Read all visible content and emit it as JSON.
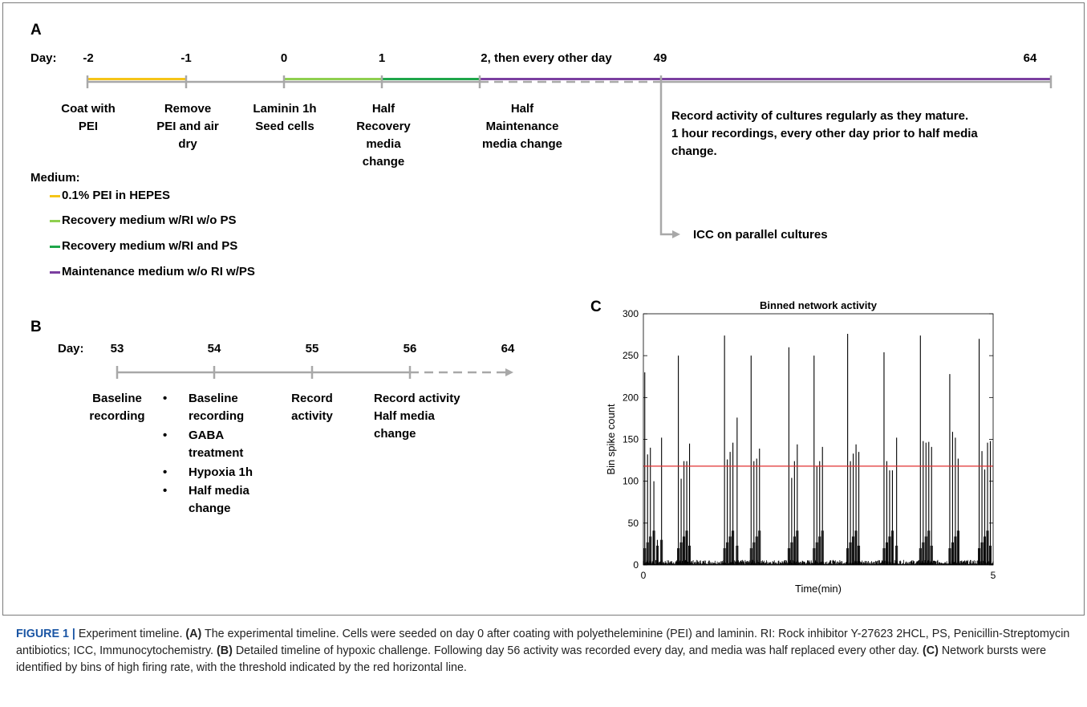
{
  "panel_a": {
    "letter": "A",
    "day_label": "Day:",
    "days": [
      "-2",
      "-1",
      "0",
      "1",
      "2, then every other day",
      "49",
      "64"
    ],
    "steps": [
      "Coat with\nPEI",
      "Remove\nPEI and air\ndry",
      "Laminin 1h\nSeed cells",
      "Half\nRecovery\nmedia\nchange",
      "Half\nMaintenance\nmedia change"
    ],
    "record_note": "Record activity of cultures regularly as they mature.\n1 hour recordings, every other day prior to half media\nchange.",
    "icc_note": "ICC on parallel cultures",
    "medium_title": "Medium:",
    "media": [
      {
        "label": "0.1% PEI in HEPES",
        "color": "#f5c518"
      },
      {
        "label": "Recovery medium w/RI w/o PS",
        "color": "#8fcf4f"
      },
      {
        "label": "Recovery medium w/RI and PS",
        "color": "#1fa64a"
      },
      {
        "label": "Maintenance medium w/o RI w/PS",
        "color": "#7b3fa0"
      }
    ]
  },
  "panel_b": {
    "letter": "B",
    "day_label": "Day:",
    "days": [
      "53",
      "54",
      "55",
      "56",
      "64"
    ],
    "baseline": "Baseline\nrecording",
    "bullets": [
      "Baseline\nrecording",
      "GABA\ntreatment",
      "Hypoxia 1h",
      "Half media\nchange"
    ],
    "record": "Record\nactivity",
    "record_half": "Record activity\nHalf media\nchange"
  },
  "panel_c": {
    "letter": "C"
  },
  "chart_data": {
    "type": "bar",
    "title": "Binned network activity",
    "xlabel": "Time(min)",
    "ylabel": "Bin spike count",
    "xlim": [
      0,
      5
    ],
    "ylim": [
      0,
      300
    ],
    "xticks": [
      0,
      5
    ],
    "yticks": [
      0,
      50,
      100,
      150,
      200,
      250,
      300
    ],
    "threshold": 118,
    "threshold_color": "#e03030",
    "bar_color": "#000000",
    "bursts": [
      {
        "x": [
          0.02,
          0.06,
          0.1,
          0.15,
          0.2,
          0.26
        ],
        "y": [
          230,
          132,
          140,
          100,
          30,
          152
        ]
      },
      {
        "x": [
          0.5,
          0.54,
          0.58,
          0.62,
          0.66
        ],
        "y": [
          250,
          103,
          124,
          124,
          145
        ]
      },
      {
        "x": [
          1.16,
          1.2,
          1.24,
          1.28,
          1.34
        ],
        "y": [
          274,
          126,
          135,
          146,
          176
        ]
      },
      {
        "x": [
          1.54,
          1.58,
          1.62,
          1.66
        ],
        "y": [
          250,
          124,
          127,
          139
        ]
      },
      {
        "x": [
          2.08,
          2.12,
          2.16,
          2.2
        ],
        "y": [
          260,
          104,
          124,
          144
        ]
      },
      {
        "x": [
          2.44,
          2.48,
          2.52,
          2.56
        ],
        "y": [
          250,
          118,
          124,
          141
        ]
      },
      {
        "x": [
          2.92,
          2.96,
          3.0,
          3.04,
          3.08
        ],
        "y": [
          276,
          124,
          133,
          144,
          135
        ]
      },
      {
        "x": [
          3.44,
          3.48,
          3.52,
          3.56,
          3.62
        ],
        "y": [
          254,
          124,
          113,
          113,
          152
        ]
      },
      {
        "x": [
          3.96,
          4.0,
          4.04,
          4.08,
          4.12
        ],
        "y": [
          274,
          148,
          146,
          147,
          141
        ]
      },
      {
        "x": [
          4.38,
          4.42,
          4.46,
          4.5
        ],
        "y": [
          228,
          159,
          152,
          127
        ]
      },
      {
        "x": [
          4.8,
          4.84,
          4.88,
          4.92,
          4.96
        ],
        "y": [
          270,
          136,
          114,
          146,
          148
        ]
      }
    ]
  },
  "caption": {
    "lead": "FIGURE 1 |",
    "intro": " Experiment timeline. ",
    "a_tag": "(A)",
    "a_text": " The experimental timeline. Cells were seeded on day 0 after coating with polyetheleminine (PEI) and laminin. RI: Rock inhibitor Y-27623 2HCL, PS, Penicillin-Streptomycin antibiotics; ICC, Immunocytochemistry. ",
    "b_tag": "(B)",
    "b_text": " Detailed timeline of hypoxic challenge. Following day 56 activity was recorded every day, and media was half replaced every other day. ",
    "c_tag": "(C)",
    "c_text": " Network bursts were identified by bins of high firing rate, with the threshold indicated by the red horizontal line."
  }
}
